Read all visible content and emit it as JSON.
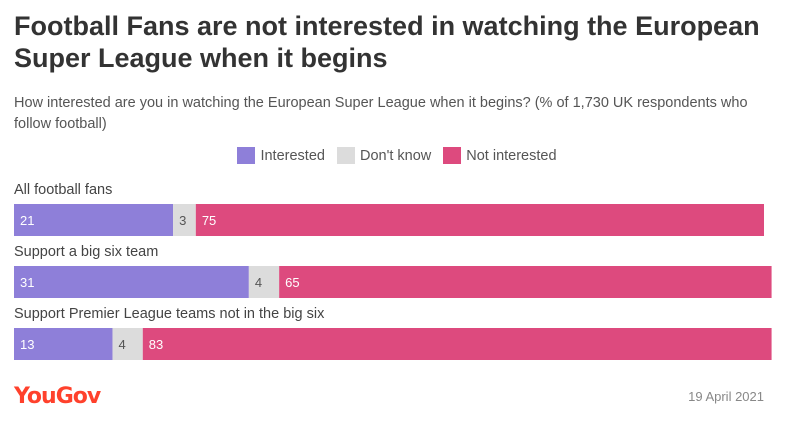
{
  "title": "Football Fans are not interested in watching the European Super League when it begins",
  "subtitle": "How interested are you in watching the European Super League when it begins? (% of 1,730 UK respondents who follow football)",
  "brand": "YouGov",
  "date": "19 April 2021",
  "colors": {
    "interested": "#8e7fd9",
    "dont_know": "#dcdcdc",
    "not_interested": "#dd4a7e"
  },
  "chart_data": {
    "type": "bar",
    "orientation": "horizontal",
    "stacked": true,
    "title": "Football Fans are not interested in watching the European Super League when it begins",
    "xlim": [
      0,
      99
    ],
    "legend_position": "top-center",
    "categories": [
      "All football fans",
      "Support a big six team",
      "Support Premier League teams not in the big six"
    ],
    "series": [
      {
        "name": "Interested",
        "values": [
          21,
          31,
          13
        ]
      },
      {
        "name": "Don't know",
        "values": [
          3,
          4,
          4
        ]
      },
      {
        "name": "Not interested",
        "values": [
          75,
          65,
          83
        ]
      }
    ]
  }
}
